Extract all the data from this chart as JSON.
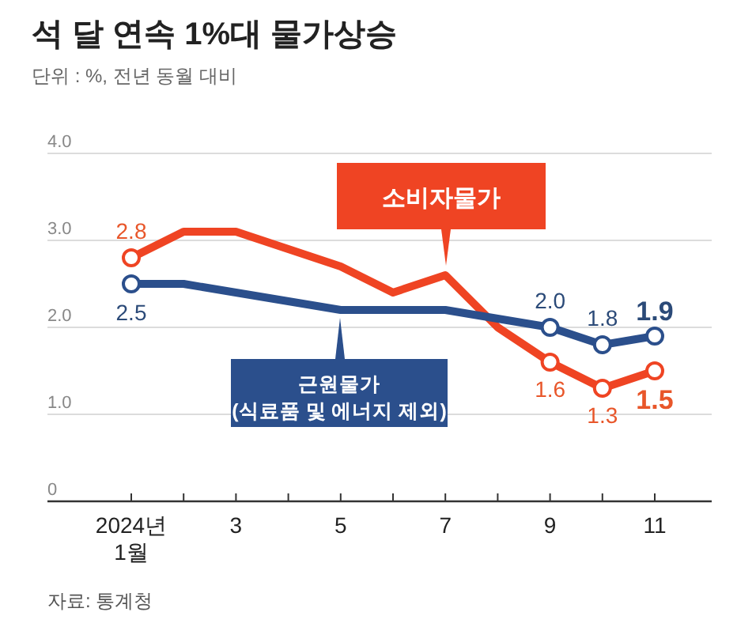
{
  "chart_data": {
    "type": "line",
    "title": "석 달 연속 1%대 물가상승",
    "subtitle": "단위 : %, 전년 동월 대비",
    "annotations": [
      "자료: 통계청"
    ],
    "categories": [
      "2024년\n1월",
      null,
      "3",
      null,
      "5",
      null,
      "7",
      null,
      "9",
      null,
      "11"
    ],
    "ylim": [
      0,
      4
    ],
    "yticks": [
      {
        "value": 0,
        "label": "0"
      },
      {
        "value": 1,
        "label": "1.0"
      },
      {
        "value": 2,
        "label": "2.0"
      },
      {
        "value": 3,
        "label": "3.0"
      },
      {
        "value": 4,
        "label": "4.0"
      }
    ],
    "grid": "y",
    "line_style": "solid",
    "series": [
      {
        "name": "소비자물가",
        "color": "#ef4423",
        "values": [
          2.8,
          3.1,
          3.1,
          2.9,
          2.7,
          2.4,
          2.6,
          2.0,
          1.6,
          1.3,
          1.5
        ],
        "value_labels": [
          "2.8",
          null,
          null,
          null,
          null,
          null,
          null,
          null,
          "1.6",
          "1.3",
          "1.5"
        ]
      },
      {
        "name": "근원물가\n(식료품 및 에너지 제외)",
        "color": "#2b4f8c",
        "values": [
          2.5,
          2.5,
          2.4,
          2.3,
          2.2,
          2.2,
          2.2,
          2.1,
          2.0,
          1.8,
          1.9
        ],
        "value_labels": [
          "2.5",
          null,
          null,
          null,
          null,
          null,
          null,
          null,
          "2.0",
          "1.8",
          "1.9"
        ]
      }
    ]
  }
}
